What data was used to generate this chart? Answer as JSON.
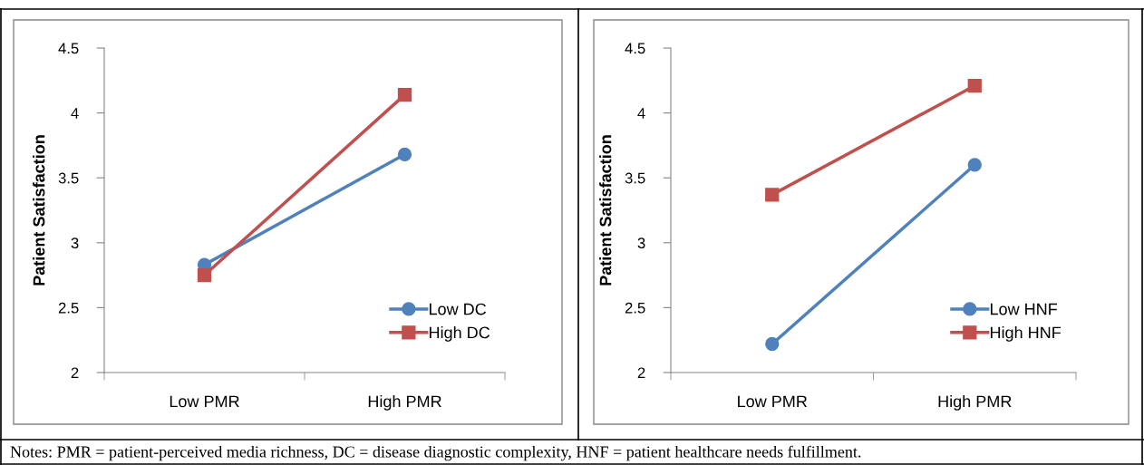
{
  "chart_data": [
    {
      "type": "line",
      "ylabel": "Patient Satisfaction",
      "categories": [
        "Low PMR",
        "High PMR"
      ],
      "ylim": [
        2,
        4.5
      ],
      "yticks": [
        2,
        2.5,
        3,
        3.5,
        4,
        4.5
      ],
      "grid": false,
      "legend": "bottom right",
      "line_style": "solid",
      "series": [
        {
          "name": "Low DC",
          "color": "#4f81bd",
          "marker": "circle",
          "values": [
            2.83,
            3.68
          ]
        },
        {
          "name": "High DC",
          "color": "#c0504d",
          "marker": "square",
          "values": [
            2.75,
            4.14
          ]
        }
      ],
      "annotations": [
        "Notes: PMR = patient-perceived media richness, DC = disease diagnostic complexity, HNF = patient healthcare needs fulfillment."
      ]
    },
    {
      "type": "line",
      "ylabel": "Patient Satisfaction",
      "categories": [
        "Low PMR",
        "High PMR"
      ],
      "ylim": [
        2,
        4.5
      ],
      "yticks": [
        2,
        2.5,
        3,
        3.5,
        4,
        4.5
      ],
      "grid": false,
      "legend": "bottom right",
      "line_style": "solid",
      "series": [
        {
          "name": "Low HNF",
          "color": "#4f81bd",
          "marker": "circle",
          "values": [
            2.22,
            3.6
          ]
        },
        {
          "name": "High HNF",
          "color": "#c0504d",
          "marker": "square",
          "values": [
            3.37,
            4.21
          ]
        }
      ]
    }
  ]
}
